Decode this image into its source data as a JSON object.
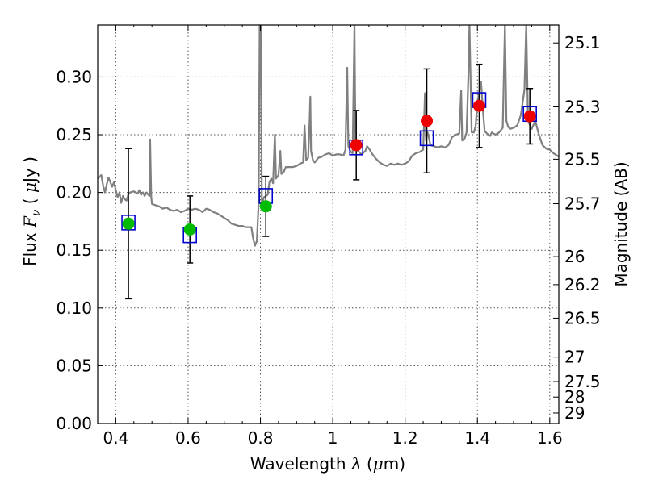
{
  "chart_data": {
    "type": "scatter",
    "xlabel": "Wavelength  λ (μm)",
    "ylabel": "Flux  F_ν  ( μJy )",
    "y2label": "Magnitude (AB)",
    "xlim": [
      0.35,
      1.625
    ],
    "ylim": [
      0.0,
      0.345
    ],
    "grid": true,
    "x_ticks": [
      0.4,
      0.6,
      0.8,
      1.0,
      1.2,
      1.4,
      1.6
    ],
    "x_tick_labels": [
      "0.4",
      "0.6",
      "0.8",
      "1",
      "1.2",
      "1.4",
      "1.6"
    ],
    "y_ticks": [
      0.0,
      0.05,
      0.1,
      0.15,
      0.2,
      0.25,
      0.3
    ],
    "y_tick_labels": [
      "0.00",
      "0.05",
      "0.10",
      "0.15",
      "0.20",
      "0.25",
      "0.30"
    ],
    "y2_ticks": [
      {
        "label": "25.1",
        "flux": 0.3295
      },
      {
        "label": "25.3",
        "flux": 0.2741
      },
      {
        "label": "25.5",
        "flux": 0.2288
      },
      {
        "label": "25.7",
        "flux": 0.1903
      },
      {
        "label": "26",
        "flux": 0.1445
      },
      {
        "label": "26.2",
        "flux": 0.1202
      },
      {
        "label": "26.5",
        "flux": 0.0912
      },
      {
        "label": "27",
        "flux": 0.0575
      },
      {
        "label": "27.5",
        "flux": 0.0363
      },
      {
        "label": "28",
        "flux": 0.0229
      },
      {
        "label": "29",
        "flux": 0.0091
      }
    ],
    "colors": {
      "spectrum": "#808080",
      "model_box": "#0000cc",
      "observed_green": "#00bb00",
      "observed_red": "#ee0000",
      "errorbar": "#000000",
      "grid": "#555555"
    },
    "series": [
      {
        "kind": "line",
        "points": [
          [
            0.35,
            0.212
          ],
          [
            0.36,
            0.215
          ],
          [
            0.365,
            0.206
          ],
          [
            0.37,
            0.2
          ],
          [
            0.375,
            0.207
          ],
          [
            0.38,
            0.213
          ],
          [
            0.39,
            0.205
          ],
          [
            0.395,
            0.209
          ],
          [
            0.4,
            0.202
          ],
          [
            0.405,
            0.196
          ],
          [
            0.41,
            0.2
          ],
          [
            0.415,
            0.191
          ],
          [
            0.42,
            0.197
          ],
          [
            0.425,
            0.194
          ],
          [
            0.43,
            0.193
          ],
          [
            0.435,
            0.199
          ],
          [
            0.44,
            0.2
          ],
          [
            0.45,
            0.201
          ],
          [
            0.46,
            0.199
          ],
          [
            0.465,
            0.202
          ],
          [
            0.47,
            0.198
          ],
          [
            0.475,
            0.2
          ],
          [
            0.48,
            0.197
          ],
          [
            0.485,
            0.2
          ],
          [
            0.49,
            0.198
          ],
          [
            0.493,
            0.197
          ],
          [
            0.495,
            0.246
          ],
          [
            0.498,
            0.196
          ],
          [
            0.5,
            0.19
          ],
          [
            0.51,
            0.189
          ],
          [
            0.52,
            0.188
          ],
          [
            0.53,
            0.186
          ],
          [
            0.54,
            0.187
          ],
          [
            0.55,
            0.185
          ],
          [
            0.56,
            0.184
          ],
          [
            0.57,
            0.185
          ],
          [
            0.58,
            0.183
          ],
          [
            0.59,
            0.184
          ],
          [
            0.6,
            0.186
          ],
          [
            0.61,
            0.185
          ],
          [
            0.62,
            0.186
          ],
          [
            0.63,
            0.185
          ],
          [
            0.64,
            0.183
          ],
          [
            0.65,
            0.186
          ],
          [
            0.66,
            0.185
          ],
          [
            0.67,
            0.183
          ],
          [
            0.68,
            0.182
          ],
          [
            0.69,
            0.18
          ],
          [
            0.7,
            0.178
          ],
          [
            0.71,
            0.176
          ],
          [
            0.72,
            0.173
          ],
          [
            0.73,
            0.172
          ],
          [
            0.74,
            0.171
          ],
          [
            0.75,
            0.171
          ],
          [
            0.76,
            0.17
          ],
          [
            0.77,
            0.17
          ],
          [
            0.775,
            0.17
          ],
          [
            0.78,
            0.16
          ],
          [
            0.785,
            0.154
          ],
          [
            0.79,
            0.158
          ],
          [
            0.795,
            0.19
          ],
          [
            0.798,
            0.345
          ],
          [
            0.801,
            0.345
          ],
          [
            0.804,
            0.19
          ],
          [
            0.81,
            0.196
          ],
          [
            0.82,
            0.198
          ],
          [
            0.825,
            0.209
          ],
          [
            0.83,
            0.212
          ],
          [
            0.835,
            0.208
          ],
          [
            0.84,
            0.25
          ],
          [
            0.843,
            0.212
          ],
          [
            0.85,
            0.215
          ],
          [
            0.855,
            0.236
          ],
          [
            0.858,
            0.216
          ],
          [
            0.865,
            0.218
          ],
          [
            0.87,
            0.222
          ],
          [
            0.88,
            0.222
          ],
          [
            0.89,
            0.222
          ],
          [
            0.9,
            0.223
          ],
          [
            0.91,
            0.225
          ],
          [
            0.918,
            0.226
          ],
          [
            0.922,
            0.258
          ],
          [
            0.926,
            0.228
          ],
          [
            0.932,
            0.23
          ],
          [
            0.936,
            0.261
          ],
          [
            0.938,
            0.283
          ],
          [
            0.94,
            0.236
          ],
          [
            0.945,
            0.228
          ],
          [
            0.95,
            0.226
          ],
          [
            0.96,
            0.23
          ],
          [
            0.97,
            0.231
          ],
          [
            0.98,
            0.233
          ],
          [
            0.99,
            0.234
          ],
          [
            1.0,
            0.232
          ],
          [
            1.01,
            0.233
          ],
          [
            1.02,
            0.233
          ],
          [
            1.03,
            0.232
          ],
          [
            1.035,
            0.237
          ],
          [
            1.04,
            0.308
          ],
          [
            1.043,
            0.24
          ],
          [
            1.05,
            0.235
          ],
          [
            1.055,
            0.234
          ],
          [
            1.06,
            0.345
          ],
          [
            1.063,
            0.238
          ],
          [
            1.07,
            0.236
          ],
          [
            1.08,
            0.233
          ],
          [
            1.09,
            0.236
          ],
          [
            1.095,
            0.24
          ],
          [
            1.1,
            0.238
          ],
          [
            1.11,
            0.233
          ],
          [
            1.12,
            0.229
          ],
          [
            1.13,
            0.226
          ],
          [
            1.14,
            0.224
          ],
          [
            1.15,
            0.223
          ],
          [
            1.16,
            0.225
          ],
          [
            1.17,
            0.224
          ],
          [
            1.18,
            0.225
          ],
          [
            1.19,
            0.224
          ],
          [
            1.2,
            0.225
          ],
          [
            1.21,
            0.227
          ],
          [
            1.22,
            0.232
          ],
          [
            1.23,
            0.234
          ],
          [
            1.24,
            0.235
          ],
          [
            1.25,
            0.237
          ],
          [
            1.255,
            0.286
          ],
          [
            1.258,
            0.245
          ],
          [
            1.262,
            0.252
          ],
          [
            1.265,
            0.249
          ],
          [
            1.27,
            0.241
          ],
          [
            1.28,
            0.24
          ],
          [
            1.29,
            0.239
          ],
          [
            1.3,
            0.24
          ],
          [
            1.31,
            0.239
          ],
          [
            1.32,
            0.241
          ],
          [
            1.33,
            0.248
          ],
          [
            1.34,
            0.25
          ],
          [
            1.35,
            0.251
          ],
          [
            1.355,
            0.288
          ],
          [
            1.358,
            0.245
          ],
          [
            1.365,
            0.247
          ],
          [
            1.37,
            0.252
          ],
          [
            1.375,
            0.3
          ],
          [
            1.378,
            0.345
          ],
          [
            1.381,
            0.3
          ],
          [
            1.384,
            0.252
          ],
          [
            1.39,
            0.252
          ],
          [
            1.395,
            0.257
          ],
          [
            1.4,
            0.278
          ],
          [
            1.41,
            0.296
          ],
          [
            1.415,
            0.272
          ],
          [
            1.42,
            0.253
          ],
          [
            1.43,
            0.25
          ],
          [
            1.435,
            0.249
          ],
          [
            1.44,
            0.252
          ],
          [
            1.45,
            0.25
          ],
          [
            1.46,
            0.252
          ],
          [
            1.47,
            0.256
          ],
          [
            1.476,
            0.345
          ],
          [
            1.48,
            0.262
          ],
          [
            1.485,
            0.257
          ],
          [
            1.49,
            0.255
          ],
          [
            1.5,
            0.256
          ],
          [
            1.51,
            0.258
          ],
          [
            1.52,
            0.267
          ],
          [
            1.53,
            0.289
          ],
          [
            1.535,
            0.345
          ],
          [
            1.54,
            0.262
          ],
          [
            1.55,
            0.255
          ],
          [
            1.56,
            0.262
          ],
          [
            1.57,
            0.25
          ],
          [
            1.58,
            0.241
          ],
          [
            1.59,
            0.238
          ],
          [
            1.6,
            0.237
          ],
          [
            1.61,
            0.234
          ],
          [
            1.625,
            0.231
          ]
        ]
      },
      {
        "kind": "model_box",
        "points": [
          {
            "x": 0.435,
            "y": 0.174
          },
          {
            "x": 0.605,
            "y": 0.163
          },
          {
            "x": 0.815,
            "y": 0.197
          },
          {
            "x": 1.065,
            "y": 0.239
          },
          {
            "x": 1.26,
            "y": 0.247
          },
          {
            "x": 1.405,
            "y": 0.28
          },
          {
            "x": 1.545,
            "y": 0.268
          }
        ]
      },
      {
        "kind": "observed",
        "points": [
          {
            "x": 0.435,
            "y": 0.173,
            "err": 0.065,
            "color": "green"
          },
          {
            "x": 0.605,
            "y": 0.168,
            "err": 0.029,
            "color": "green"
          },
          {
            "x": 0.815,
            "y": 0.188,
            "err": 0.026,
            "color": "green"
          },
          {
            "x": 1.065,
            "y": 0.241,
            "err": 0.03,
            "color": "red"
          },
          {
            "x": 1.26,
            "y": 0.262,
            "err": 0.045,
            "color": "red"
          },
          {
            "x": 1.405,
            "y": 0.275,
            "err": 0.036,
            "color": "red"
          },
          {
            "x": 1.545,
            "y": 0.266,
            "err": 0.024,
            "color": "red"
          }
        ]
      }
    ]
  }
}
